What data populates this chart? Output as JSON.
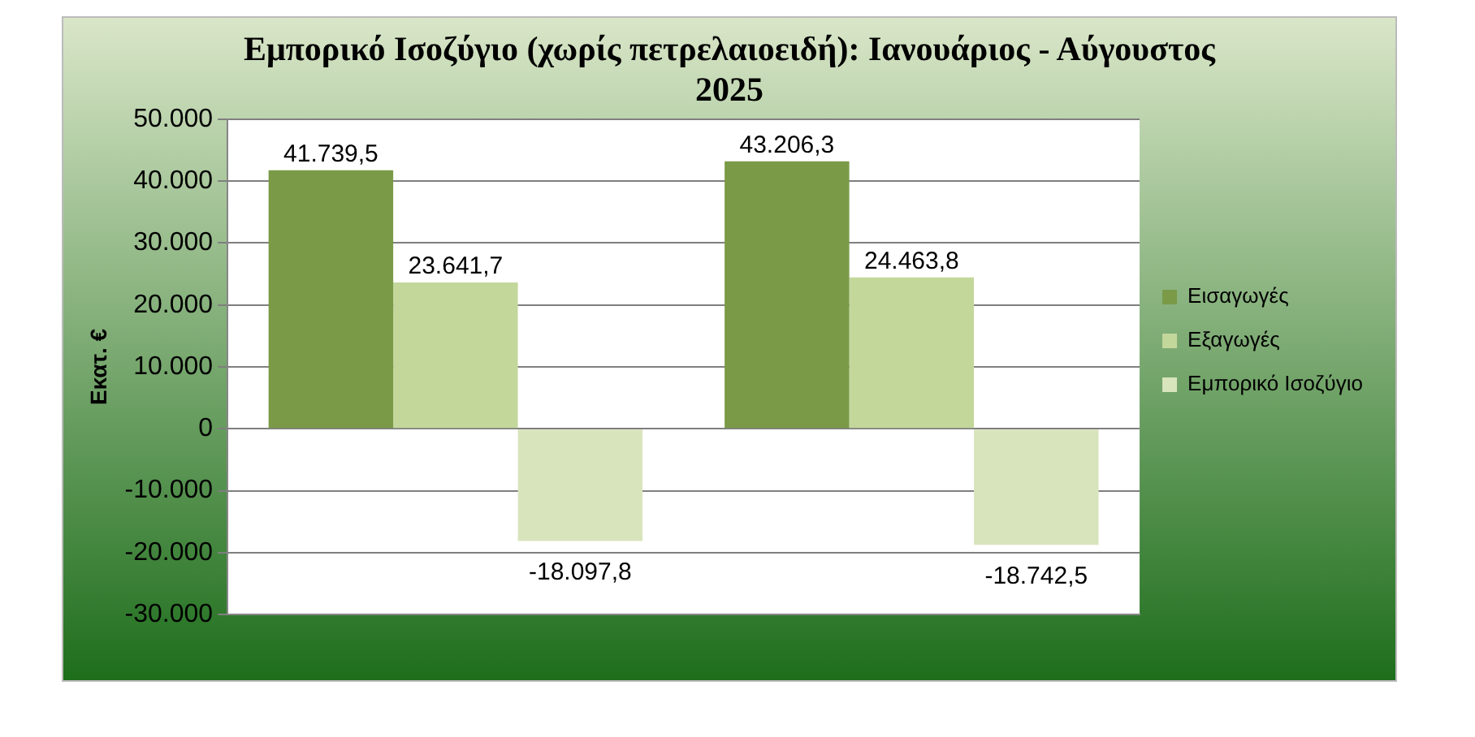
{
  "chart_data": {
    "type": "bar",
    "title": "Εμπορικό Ισοζύγιο (χωρίς πετρελαιοειδή): Ιανουάριος - Αύγουστος 2025",
    "ylabel": "Εκατ. €",
    "categories": [
      null,
      null
    ],
    "series": [
      {
        "name": "Εισαγωγές",
        "color": "#7a9a47",
        "values": [
          41739.5,
          43206.3
        ],
        "value_labels": [
          "41.739,5",
          "43.206,3"
        ]
      },
      {
        "name": "Εξαγωγές",
        "color": "#c4d79b",
        "values": [
          23641.7,
          24463.8
        ],
        "value_labels": [
          "23.641,7",
          "24.463,8"
        ]
      },
      {
        "name": "Εμπορικό Ισοζύγιο",
        "color": "#d8e4bc",
        "values": [
          -18097.8,
          -18742.5
        ],
        "value_labels": [
          "-18.097,8",
          "-18.742,5"
        ]
      }
    ],
    "ylim": [
      -30000,
      50000
    ],
    "yticks": [
      {
        "value": -30000,
        "label": "-30.000"
      },
      {
        "value": -20000,
        "label": "-20.000"
      },
      {
        "value": -10000,
        "label": "-10.000"
      },
      0,
      {
        "value": 10000,
        "label": "10.000"
      },
      {
        "value": 20000,
        "label": "20.000"
      },
      {
        "value": 30000,
        "label": "30.000"
      },
      {
        "value": 40000,
        "label": "40.000"
      },
      {
        "value": 50000,
        "label": "50.000"
      }
    ],
    "grid": "y",
    "legend": "right"
  }
}
